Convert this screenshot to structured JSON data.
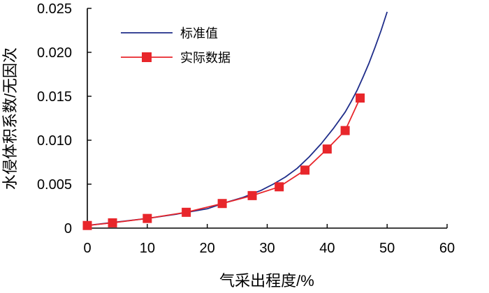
{
  "chart_data": {
    "type": "line",
    "title": "",
    "xlabel": "气采出程度/%",
    "ylabel": "水侵体积系数/无因次",
    "xlim": [
      0,
      60
    ],
    "ylim": [
      0,
      0.025
    ],
    "x_ticks": [
      "0",
      "10",
      "20",
      "30",
      "40",
      "50",
      "60"
    ],
    "y_ticks": [
      "0",
      "0.005",
      "0.010",
      "0.015",
      "0.020",
      "0.025"
    ],
    "grid": false,
    "legend_position": "top-left",
    "series": [
      {
        "name": "标准值",
        "color": "#1f2d8a",
        "marker": "none",
        "x": [
          0,
          5,
          10,
          15,
          20,
          23,
          26,
          29,
          31,
          33,
          35,
          37,
          39,
          41,
          43,
          44,
          45,
          46,
          47,
          48,
          49,
          50
        ],
        "y": [
          0.0003,
          0.0007,
          0.0011,
          0.0016,
          0.0022,
          0.0029,
          0.0035,
          0.0043,
          0.005,
          0.0058,
          0.0068,
          0.0081,
          0.0096,
          0.0113,
          0.0132,
          0.0144,
          0.0157,
          0.0172,
          0.0188,
          0.0206,
          0.0225,
          0.0246
        ]
      },
      {
        "name": "实际数据",
        "color": "#e8262b",
        "marker": "square",
        "x": [
          0,
          4.2,
          10,
          16.5,
          22.5,
          27.5,
          32,
          36.3,
          40,
          43,
          45.5
        ],
        "y": [
          0.0003,
          0.0006,
          0.0011,
          0.0018,
          0.0028,
          0.0037,
          0.0047,
          0.0066,
          0.009,
          0.0111,
          0.0148
        ]
      }
    ]
  }
}
